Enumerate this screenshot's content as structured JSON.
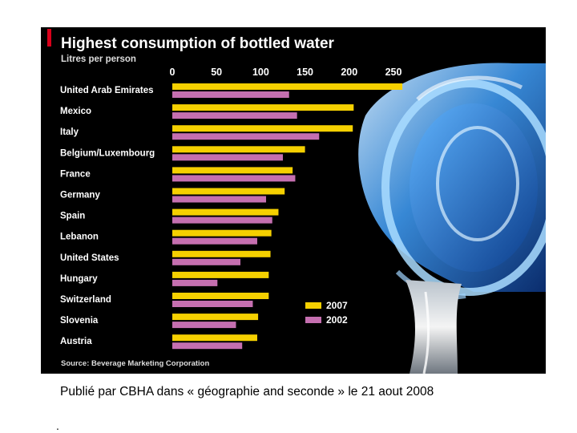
{
  "caption": "Publié par CBHA dans « géographie and seconde » le 21 aout 2008",
  "footnote_mark": ".",
  "colors": {
    "background": "#000000",
    "series_2007": "#f5d000",
    "series_2002": "#c56fb0",
    "accent_red": "#d9001b",
    "text": "#ffffff",
    "muted_text": "#dddddd"
  },
  "chart_data": {
    "type": "bar",
    "orientation": "horizontal",
    "title": "Highest consumption of bottled water",
    "subtitle": "Litres per person",
    "source": "Source: Beverage Marketing Corporation",
    "xlim": [
      0,
      250
    ],
    "xticks": [
      0,
      50,
      100,
      150,
      200,
      250
    ],
    "xtick_labels": [
      "0",
      "50",
      "100",
      "150",
      "200",
      "250"
    ],
    "grid": false,
    "legend_position": "bottom-right",
    "categories": [
      "United Arab Emirates",
      "Mexico",
      "Italy",
      "Belgium/Luxembourg",
      "France",
      "Germany",
      "Spain",
      "Lebanon",
      "United States",
      "Hungary",
      "Switzerland",
      "Slovenia",
      "Austria"
    ],
    "series": [
      {
        "name": "2007",
        "color": "#f5d000",
        "values": [
          260,
          205,
          204,
          150,
          136,
          127,
          120,
          112,
          111,
          109,
          109,
          97,
          96
        ]
      },
      {
        "name": "2002",
        "color": "#c56fb0",
        "values": [
          132,
          141,
          166,
          125,
          139,
          106,
          113,
          96,
          77,
          51,
          91,
          72,
          79
        ]
      }
    ]
  }
}
